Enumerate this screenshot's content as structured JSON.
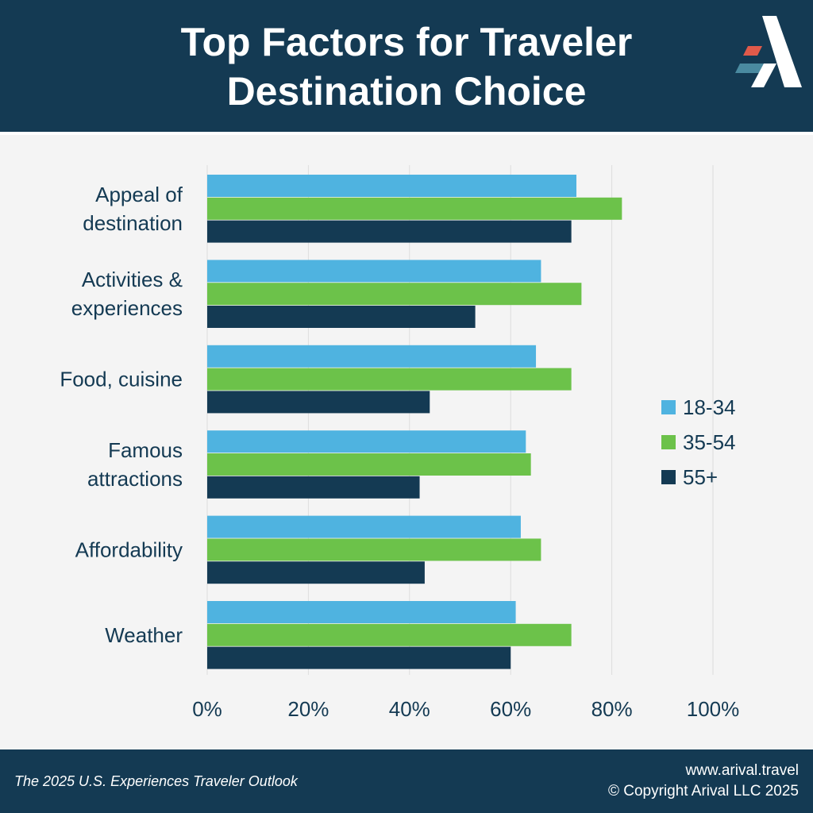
{
  "header": {
    "title_line1": "Top Factors for Traveler",
    "title_line2": "Destination Choice",
    "logo_icon": "arival-logo-icon"
  },
  "footer": {
    "source": "The 2025 U.S. Experiences Traveler Outlook",
    "website": "www.arival.travel",
    "copyright": "© Copyright Arival LLC 2025"
  },
  "colors": {
    "header_bg": "#143a53",
    "series_18_34": "#4fb3e0",
    "series_35_54": "#6cc24a",
    "series_55_plus": "#143a53",
    "text": "#143a53"
  },
  "chart_data": {
    "type": "bar",
    "orientation": "horizontal",
    "title": "Top Factors for Traveler Destination Choice",
    "categories": [
      [
        "Appeal of",
        "destination"
      ],
      [
        "Activities &",
        "experiences"
      ],
      [
        "Food, cuisine"
      ],
      [
        "Famous",
        "attractions"
      ],
      [
        "Affordability"
      ],
      [
        "Weather"
      ]
    ],
    "series": [
      {
        "name": "18-34",
        "color": "#4fb3e0",
        "values": [
          73,
          66,
          65,
          63,
          62,
          61
        ]
      },
      {
        "name": "35-54",
        "color": "#6cc24a",
        "values": [
          82,
          74,
          72,
          64,
          66,
          72
        ]
      },
      {
        "name": "55+",
        "color": "#143a53",
        "values": [
          72,
          53,
          44,
          42,
          43,
          60
        ]
      }
    ],
    "xlim": [
      0,
      100
    ],
    "xticks": [
      0,
      20,
      40,
      60,
      80,
      100
    ],
    "xtick_labels": [
      "0%",
      "20%",
      "40%",
      "60%",
      "80%",
      "100%"
    ],
    "grid": true,
    "legend_position": "right"
  }
}
